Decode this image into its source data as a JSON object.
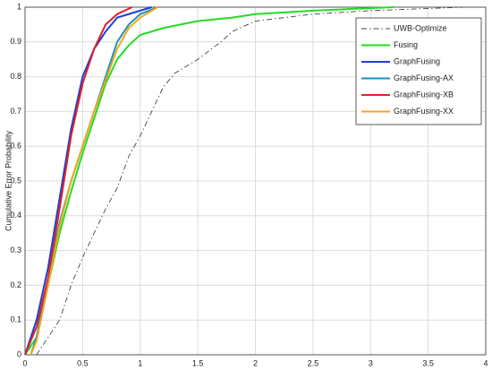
{
  "chart_data": {
    "type": "line",
    "y_label": "Cumulative Error Probability",
    "xlim": [
      0,
      4
    ],
    "ylim": [
      0,
      1
    ],
    "xticks": [
      0,
      0.5,
      1,
      1.5,
      2,
      2.5,
      3,
      3.5,
      4
    ],
    "yticks": [
      0,
      0.1,
      0.2,
      0.3,
      0.4,
      0.5,
      0.6,
      0.7,
      0.8,
      0.9,
      1
    ],
    "grid": true,
    "legend": "upper right",
    "series": [
      {
        "name": "UWB-Optimize",
        "color": "#444444",
        "dash": "dashdot",
        "x": [
          0.1,
          0.2,
          0.3,
          0.4,
          0.5,
          0.6,
          0.7,
          0.8,
          0.9,
          1.0,
          1.1,
          1.2,
          1.3,
          1.5,
          1.7,
          1.8,
          2.0,
          2.5,
          3.0,
          3.8
        ],
        "values": [
          0,
          0.05,
          0.1,
          0.2,
          0.28,
          0.35,
          0.42,
          0.48,
          0.57,
          0.63,
          0.7,
          0.77,
          0.81,
          0.85,
          0.9,
          0.93,
          0.96,
          0.98,
          0.99,
          1.0
        ]
      },
      {
        "name": "Fusing",
        "color": "#22dd22",
        "x": [
          0,
          0.1,
          0.2,
          0.3,
          0.4,
          0.5,
          0.6,
          0.7,
          0.8,
          0.9,
          1.0,
          1.2,
          1.5,
          1.8,
          2.0,
          2.5,
          3.2
        ],
        "values": [
          0,
          0.05,
          0.2,
          0.35,
          0.47,
          0.58,
          0.68,
          0.78,
          0.85,
          0.89,
          0.92,
          0.94,
          0.96,
          0.97,
          0.98,
          0.99,
          1.0
        ]
      },
      {
        "name": "GraphFusing",
        "color": "#1f3fd0",
        "x": [
          0,
          0.1,
          0.2,
          0.3,
          0.4,
          0.5,
          0.6,
          0.7,
          0.8,
          0.9,
          1.1
        ],
        "values": [
          0,
          0.1,
          0.25,
          0.45,
          0.65,
          0.8,
          0.88,
          0.93,
          0.97,
          0.98,
          1.0
        ]
      },
      {
        "name": "GraphFusing-AX",
        "color": "#1f8fbf",
        "x": [
          0.05,
          0.1,
          0.2,
          0.3,
          0.4,
          0.5,
          0.6,
          0.7,
          0.8,
          0.9,
          1.0,
          1.15
        ],
        "values": [
          0,
          0.05,
          0.22,
          0.38,
          0.5,
          0.6,
          0.7,
          0.8,
          0.9,
          0.95,
          0.98,
          1.0
        ]
      },
      {
        "name": "GraphFusing-XB",
        "color": "#e0202a",
        "x": [
          0,
          0.1,
          0.2,
          0.3,
          0.4,
          0.5,
          0.6,
          0.7,
          0.8,
          0.93
        ],
        "values": [
          0,
          0.08,
          0.22,
          0.42,
          0.63,
          0.78,
          0.88,
          0.95,
          0.98,
          1.0
        ]
      },
      {
        "name": "GraphFusing-XX",
        "color": "#f0a818",
        "x": [
          0.05,
          0.1,
          0.2,
          0.3,
          0.4,
          0.5,
          0.6,
          0.7,
          0.8,
          0.9,
          1.0,
          1.15
        ],
        "values": [
          0,
          0.04,
          0.2,
          0.37,
          0.5,
          0.6,
          0.7,
          0.79,
          0.88,
          0.94,
          0.97,
          1.0
        ]
      }
    ]
  }
}
